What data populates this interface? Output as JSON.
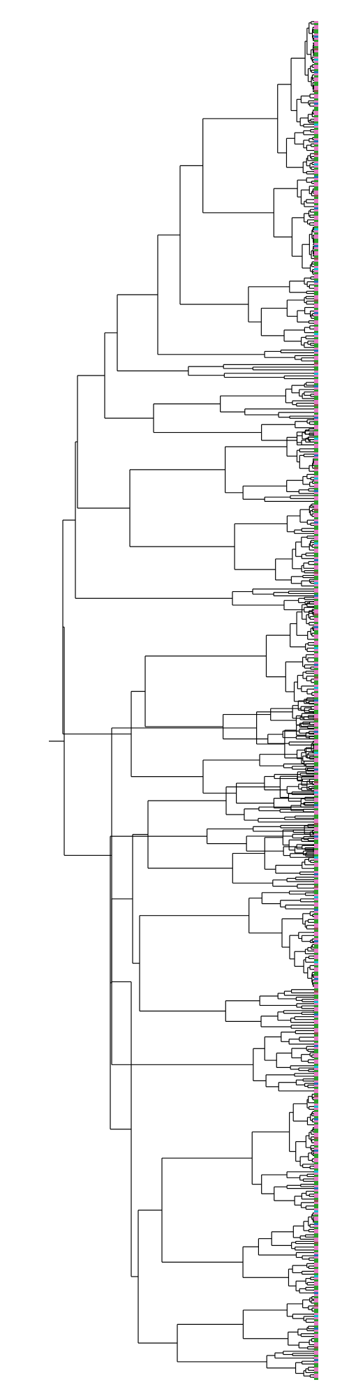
{
  "diagram": {
    "type": "dendrogram",
    "orientation": "root-left-leaves-right",
    "colors": {
      "branch": "#000000",
      "background": "#ffffff",
      "leaf_group_a": "#e377c2",
      "leaf_group_b": "#2ca02c",
      "leaf_group_c": "#1f77b4",
      "leaf_group_d": "#8c564b",
      "leaf_group_e": "#17becf"
    },
    "leaf_color_sequence": [
      "a",
      "b",
      "a",
      "a",
      "b",
      "b",
      "a",
      "c",
      "a",
      "b",
      "a",
      "a",
      "b",
      "d",
      "a",
      "b",
      "b",
      "a",
      "e",
      "a",
      "b",
      "a",
      "a",
      "b",
      "c",
      "a",
      "b",
      "a",
      "a",
      "b",
      "b",
      "a",
      "a",
      "d",
      "b",
      "a",
      "a",
      "b",
      "a",
      "c",
      "a",
      "b",
      "b",
      "a",
      "a",
      "b",
      "a",
      "a",
      "b",
      "e"
    ]
  }
}
